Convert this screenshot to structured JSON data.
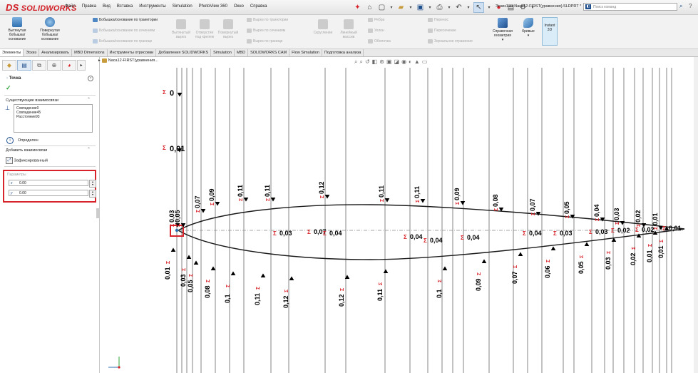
{
  "app": {
    "logo_ds": "DS",
    "logo_text": "SOLIDWORKS",
    "document_title": "Эскиз1 от Naca12-FIRST(уравнения).SLDPRT *"
  },
  "menu": [
    "Файл",
    "Правка",
    "Вид",
    "Вставка",
    "Инструменты",
    "Simulation",
    "PhotoView 360",
    "Окно",
    "Справка"
  ],
  "search": {
    "placeholder": "Поиск команд"
  },
  "ribbon": {
    "extrude_boss": "Вытянутая бобышка/основание",
    "revolve_boss": "Повернутая бобышка/основание",
    "swept_boss": "Бобышка/основание по траектории",
    "loft_boss": "Бобышка/основание по сечениям",
    "boundary_boss": "Бобышка/основание по границе",
    "extrude_cut": "Вытянутый вырез",
    "hole_wizard": "Отверстие под крепеж",
    "revolve_cut": "Повернутый вырез",
    "swept_cut": "Вырез по траектории",
    "loft_cut": "Вырез по сечениям",
    "boundary_cut": "Вырез по границе",
    "fillet": "Скругление",
    "linear_pattern": "Линейный массив",
    "rib": "Ребра",
    "draft": "Уклон",
    "shell": "Оболочка",
    "wrap": "Перенос",
    "intersect": "Пересечение",
    "mirror": "Зеркальное отражение",
    "ref_geometry": "Справочная геометрия",
    "curves": "Кривые",
    "instant3d": "Instant 3D"
  },
  "tabs": [
    "Элементы",
    "Эскиз",
    "Анализировать",
    "MBD Dimensions",
    "Инструменты отрисовки",
    "Добавления SOLIDWORKS",
    "Simulation",
    "MBD",
    "SOLIDWORKS CAM",
    "Flow Simulation",
    "Подготовка анализа"
  ],
  "feature_tree": {
    "item": "Naca12-FIRST(уравнения..."
  },
  "property_manager": {
    "title": "Точка",
    "existing_relations_header": "Существующие взаимосвязи",
    "relations": [
      "Совпадение0",
      "Совпадение45",
      "Расстояние93"
    ],
    "status": "Определен",
    "add_relations_header": "Добавить взаимосвязи",
    "add_relation_fixed": "Зафиксированный",
    "parameters_header": "Параметры",
    "x_label": "x",
    "x_value": "0.00",
    "y_label": "y",
    "y_value": "0.00"
  },
  "dimensions": {
    "top": [
      "0",
      "0,01",
      "0,03",
      "0,05",
      "0,07",
      "0,09",
      "0,11",
      "0,11",
      "0,12",
      "0,11",
      "0,11",
      "0,09",
      "0,08",
      "0,07",
      "0,05",
      "0,04",
      "0,03",
      "0,02",
      "0,01"
    ],
    "middle": [
      "0,03",
      "0,07",
      "0,04",
      "0,04",
      "0,04",
      "0,04",
      "0,04",
      "0,03",
      "0,03",
      "0,02",
      "0,02",
      "0,01"
    ],
    "bottom": [
      "0,01",
      "0,03",
      "0,05",
      "0,08",
      "0,1",
      "0,11",
      "0,12",
      "0,12",
      "0,11",
      "0,1",
      "0,09",
      "0,07",
      "0,06",
      "0,05",
      "0,03",
      "0,02",
      "0,01",
      "0,01"
    ]
  },
  "colors": {
    "dimension_red": "#d8232a",
    "sketch_line": "#1a1a1a",
    "highlight_box": "#d8232a",
    "accent_blue": "#1f4e8c",
    "ok_green": "#2fa33a"
  }
}
